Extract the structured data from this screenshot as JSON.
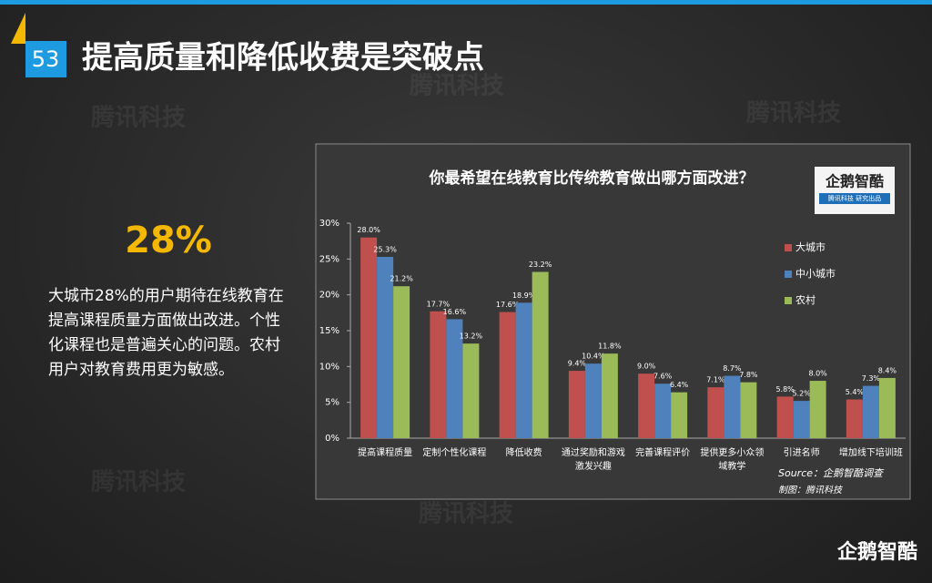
{
  "slide": {
    "number": "53",
    "title": "提高质量和降低收费是突破点",
    "highlight": "28%",
    "body": "大城市28%的用户期待在线教育在提高课程质量方面做出改进。个性化课程也是普遍关心的问题。农村用户对教育费用更为敏感。",
    "brand": "企鹅智酷",
    "watermark": "腾讯科技"
  },
  "chart_data": {
    "type": "bar",
    "title": "你最希望在线教育比传统教育做出哪方面改进？",
    "logo": "企鹅智酷",
    "logo_sub": "腾讯科技 研究出品",
    "categories": [
      "提高课程质量",
      "定制个性化课程",
      "降低收费",
      "通过奖励和游戏激发兴趣",
      "完善课程评价",
      "提供更多小众领域教学",
      "引进名师",
      "增加线下培训班"
    ],
    "series": [
      {
        "name": "大城市",
        "color": "#c0504d",
        "values": [
          28,
          17.7,
          17.6,
          9.4,
          9,
          7.1,
          5.8,
          5.4
        ],
        "value_labels": [
          "28.0%",
          "17.7%",
          "17.6%",
          "9.4%",
          "9.0%",
          "7.1%",
          "5.8%",
          "5.4%"
        ]
      },
      {
        "name": "中小城市",
        "color": "#4f81bd",
        "values": [
          25.3,
          16.6,
          18.9,
          10.4,
          7.6,
          8.7,
          5.2,
          7.3
        ],
        "value_labels": [
          "25.3%",
          "16.6%",
          "18.9%",
          "10.4%",
          "7.6%",
          "8.7%",
          "5.2%",
          "7.3%"
        ]
      },
      {
        "name": "农村",
        "color": "#9bbb59",
        "values": [
          21.2,
          13.2,
          23.2,
          11.8,
          6.4,
          7.8,
          8,
          8.4
        ],
        "value_labels": [
          "21.2%",
          "13.2%",
          "23.2%",
          "11.8%",
          "6.4%",
          "7.8%",
          "8.0%",
          "8.4%"
        ]
      }
    ],
    "ylim": [
      0,
      30
    ],
    "yticks": [
      {
        "value": 0,
        "label": "0%"
      },
      {
        "value": 5,
        "label": "5%"
      },
      {
        "value": 10,
        "label": "10%"
      },
      {
        "value": 15,
        "label": "15%"
      },
      {
        "value": 20,
        "label": "20%"
      },
      {
        "value": 25,
        "label": "25%"
      },
      {
        "value": 30,
        "label": "30%"
      }
    ],
    "legend": "top-right",
    "source": "Source：企鹅智酷调查",
    "credit": "制图：腾讯科技"
  }
}
